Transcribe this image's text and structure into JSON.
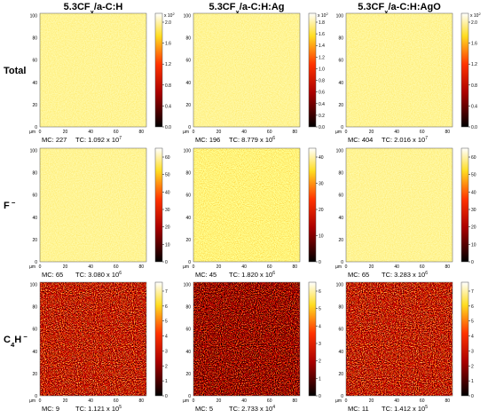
{
  "columns": [
    {
      "title": {
        "main": "5.3CF",
        "sub": "x",
        "rest": "/a-C:H"
      }
    },
    {
      "title": {
        "main": "5.3CF",
        "sub": "x",
        "rest": "/a-C:H:Ag"
      }
    },
    {
      "title": {
        "main": "5.3CF",
        "sub": "x",
        "rest": "/a-C:H:AgO"
      }
    }
  ],
  "rows": [
    {
      "label": {
        "main": "Total"
      }
    },
    {
      "label": {
        "main": "F",
        "sup": "−"
      }
    },
    {
      "label": {
        "main": "C",
        "sub": "4",
        "rest": "H",
        "sup": "−"
      }
    }
  ],
  "axis": {
    "x_ticks": [
      "0",
      "20",
      "40",
      "60",
      "80"
    ],
    "y_ticks": [
      "0",
      "20",
      "40",
      "60",
      "80",
      "100"
    ],
    "unit": "µm"
  },
  "panels": [
    [
      {
        "mc": "MC: 227",
        "tc": "TC: 1.092 x 10",
        "tc_exp": "7",
        "scale_mult": "x 10",
        "scale_exp": "2",
        "scale_ticks": [
          "2.0",
          "1.6",
          "1.2",
          "0.8",
          "0.4",
          "0.0"
        ]
      },
      {
        "mc": "MC: 196",
        "tc": "TC: 8.779 x 10",
        "tc_exp": "6",
        "scale_mult": "x 10",
        "scale_exp": "2",
        "scale_ticks": [
          "1.8",
          "1.6",
          "1.4",
          "1.2",
          "1.0",
          "0.8",
          "0.6",
          "0.4",
          "0.2",
          "0.0"
        ]
      },
      {
        "mc": "MC: 404",
        "tc": "TC: 2.016 x 10",
        "tc_exp": "7",
        "scale_mult": "x 10",
        "scale_exp": "2",
        "scale_ticks": [
          "2.0",
          "1.6",
          "1.2",
          "0.8",
          "0.4",
          "0.0"
        ]
      }
    ],
    [
      {
        "mc": "MC: 65",
        "tc": "TC: 3.080 x 10",
        "tc_exp": "6",
        "scale_ticks": [
          "60",
          "50",
          "40",
          "30",
          "20",
          "10",
          "0"
        ]
      },
      {
        "mc": "MC: 45",
        "tc": "TC: 1.820 x 10",
        "tc_exp": "6",
        "scale_ticks": [
          "40",
          "30",
          "20",
          "10",
          "0"
        ]
      },
      {
        "mc": "MC: 65",
        "tc": "TC: 3.283 x 10",
        "tc_exp": "6",
        "scale_ticks": [
          "60",
          "50",
          "40",
          "30",
          "20",
          "10",
          "0"
        ]
      }
    ],
    [
      {
        "mc": "MC: 9",
        "tc": "TC: 1.121 x 10",
        "tc_exp": "5",
        "scale_ticks": [
          "7",
          "6",
          "5",
          "4",
          "3",
          "2",
          "1",
          "0"
        ]
      },
      {
        "mc": "MC: 5",
        "tc": "TC: 2.733 x 10",
        "tc_exp": "4",
        "scale_ticks": [
          "6",
          "5",
          "4",
          "3",
          "2",
          "1",
          "0"
        ]
      },
      {
        "mc": "MC: 11",
        "tc": "TC: 1.412 x 10",
        "tc_exp": "5",
        "scale_ticks": [
          "7",
          "6",
          "5",
          "4",
          "3",
          "2",
          "1",
          "0"
        ]
      }
    ]
  ]
}
